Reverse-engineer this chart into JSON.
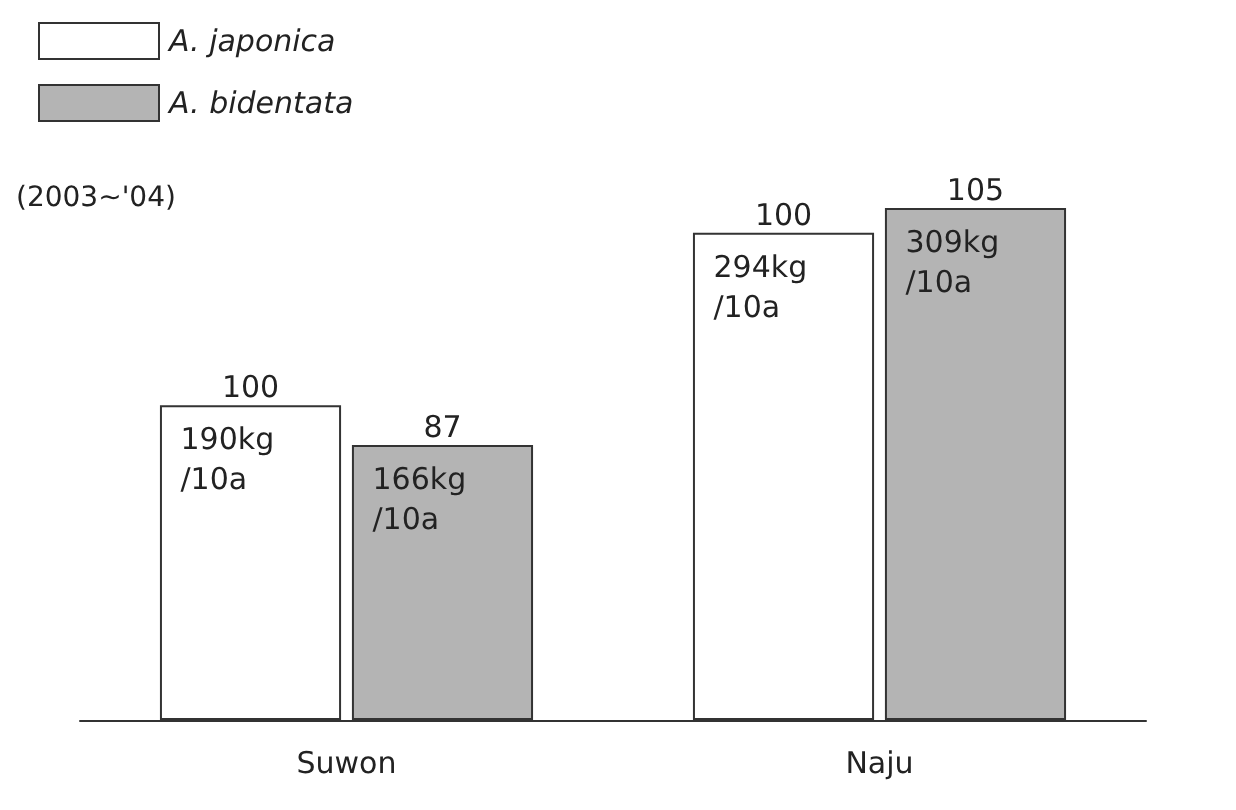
{
  "chart_data": {
    "type": "bar",
    "categories": [
      "Suwon",
      "Naju"
    ],
    "series": [
      {
        "name": "A. japonica",
        "color": "#ffffff",
        "values": [
          190,
          294
        ],
        "value_labels": [
          "190kg /10a",
          "294kg /10a"
        ]
      },
      {
        "name": "A. bidentata",
        "color": "#b4b4b4",
        "values": [
          166,
          309
        ],
        "value_labels": [
          "166kg /10a",
          "309kg /10a"
        ]
      }
    ],
    "annotations": [
      "(2003~'04)",
      {
        "text": "100",
        "x": "Suwon",
        "y": 190
      },
      {
        "text": "87",
        "x": "Suwon",
        "y": 166
      },
      {
        "text": "100",
        "x": "Naju",
        "y": 294
      },
      {
        "text": "105",
        "x": "Naju",
        "y": 309
      }
    ],
    "legend": "top left"
  }
}
